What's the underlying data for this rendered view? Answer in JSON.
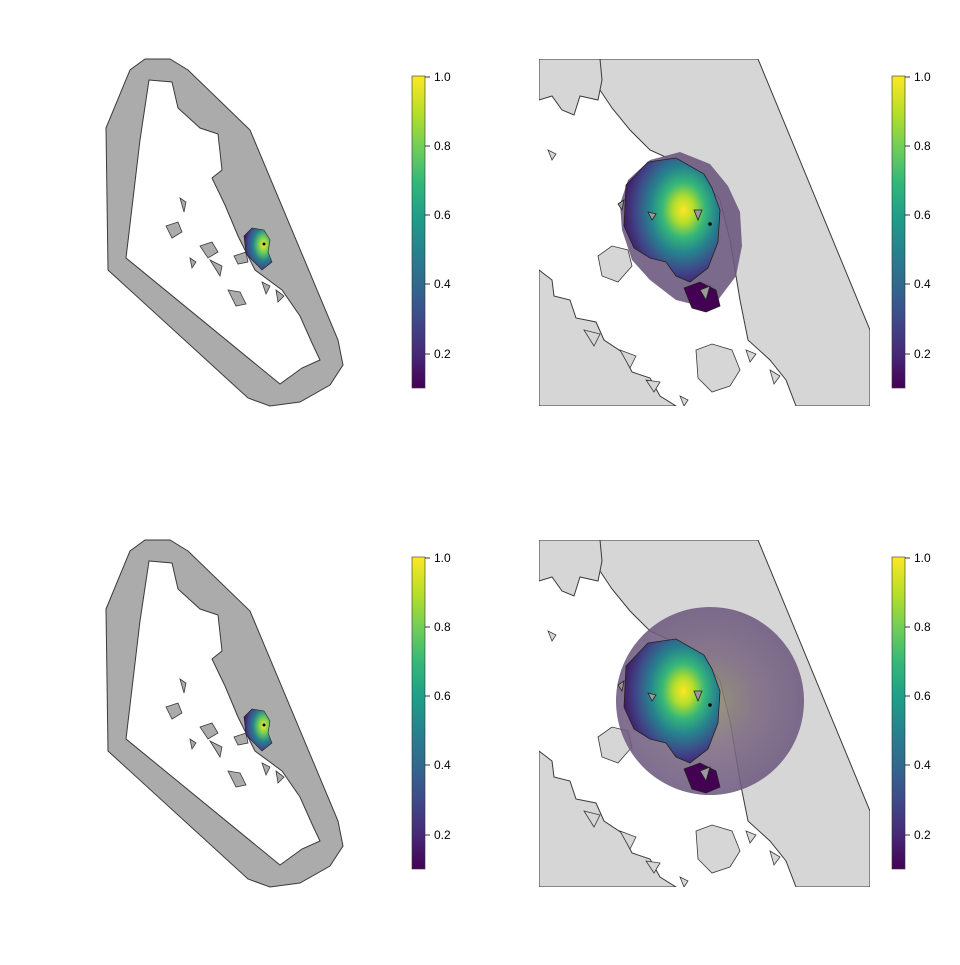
{
  "colors": {
    "land": "#d6d6d6",
    "buffer": "#ababab",
    "outline": "#3a3a3a",
    "viridis": [
      "#440154",
      "#482878",
      "#3e4a89",
      "#31688e",
      "#26828e",
      "#1f9e89",
      "#35b779",
      "#6ece58",
      "#b5de2b",
      "#fde725"
    ],
    "halo": "#7a5a86"
  },
  "panels": [
    {
      "id": "top-left-overview",
      "legend_ticks": [
        "1.0",
        "0.8",
        "0.6",
        "0.4",
        "0.2"
      ]
    },
    {
      "id": "top-right-zoom",
      "legend_ticks": [
        "1.0",
        "0.8",
        "0.6",
        "0.4",
        "0.2"
      ]
    },
    {
      "id": "bottom-left-overview",
      "legend_ticks": [
        "1.0",
        "0.8",
        "0.6",
        "0.4",
        "0.2"
      ]
    },
    {
      "id": "bottom-right-zoom",
      "legend_ticks": [
        "1.0",
        "0.8",
        "0.6",
        "0.4",
        "0.2"
      ]
    }
  ],
  "legend": {
    "min": 0.1,
    "max": 1.0
  }
}
